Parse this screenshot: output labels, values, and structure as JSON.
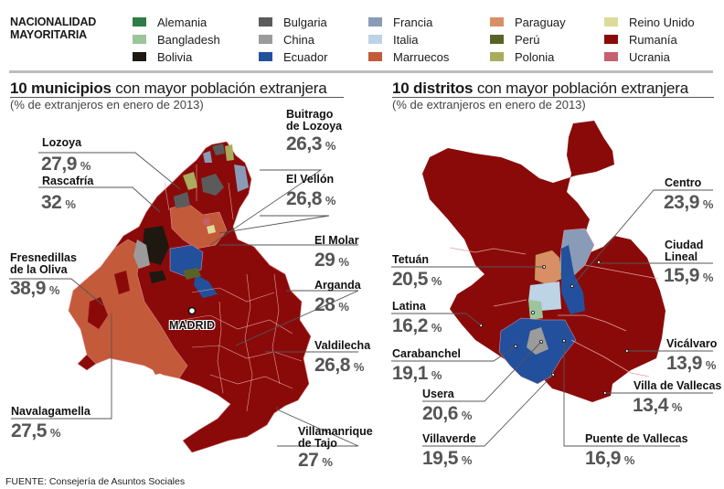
{
  "legend": {
    "title_line1": "NACIONALIDAD",
    "title_line2": "MAYORITARIA",
    "items": [
      {
        "label": "Alemania",
        "color": "#2e7d46"
      },
      {
        "label": "Bangladesh",
        "color": "#9dc49a"
      },
      {
        "label": "Bolivia",
        "color": "#1f1810"
      },
      {
        "label": "Bulgaria",
        "color": "#5b5b5b"
      },
      {
        "label": "China",
        "color": "#9b9b9b"
      },
      {
        "label": "Ecuador",
        "color": "#23509c"
      },
      {
        "label": "Francia",
        "color": "#8a9bb8"
      },
      {
        "label": "Italia",
        "color": "#bcd4e6"
      },
      {
        "label": "Marruecos",
        "color": "#c35a3a"
      },
      {
        "label": "Paraguay",
        "color": "#d98f65"
      },
      {
        "label": "Perú",
        "color": "#5a6326"
      },
      {
        "label": "Polonia",
        "color": "#a9ac5c"
      },
      {
        "label": "Reino Unido",
        "color": "#dbdc9a"
      },
      {
        "label": "Rumanía",
        "color": "#8a0a0a"
      },
      {
        "label": "Ucrania",
        "color": "#c6606e"
      }
    ]
  },
  "municipios": {
    "title_bold": "10 municipios",
    "title_rest": " con mayor población extranjera",
    "subtitle": "(% de extranjeros en enero de 2013)",
    "capital_label": "MADRID",
    "items": [
      {
        "name": "Lozoya",
        "value": "27,9",
        "unit": "%"
      },
      {
        "name": "Rascafría",
        "value": "32",
        "unit": "%"
      },
      {
        "name": "Buitrago",
        "name2": "de Lozoya",
        "value": "26,3",
        "unit": "%"
      },
      {
        "name": "El Vellón",
        "value": "26,8",
        "unit": "%"
      },
      {
        "name": "El Molar",
        "value": "29",
        "unit": "%"
      },
      {
        "name": "Fresnedillas",
        "name2": "de la Oliva",
        "value": "38,9",
        "unit": "%"
      },
      {
        "name": "Arganda",
        "value": "28",
        "unit": "%"
      },
      {
        "name": "Valdilecha",
        "value": "26,8",
        "unit": "%"
      },
      {
        "name": "Navalagamella",
        "value": "27,5",
        "unit": "%"
      },
      {
        "name": "Villamanrique",
        "name2": "de Tajo",
        "value": "27",
        "unit": "%"
      }
    ]
  },
  "distritos": {
    "title_bold": "10 distritos",
    "title_rest": " con mayor población extranjera",
    "subtitle": "(% de extranjeros en enero de 2013)",
    "items": [
      {
        "name": "Centro",
        "value": "23,9",
        "unit": "%"
      },
      {
        "name": "Tetuán",
        "value": "20,5",
        "unit": "%"
      },
      {
        "name": "Ciudad",
        "name2": "Lineal",
        "value": "15,9",
        "unit": "%"
      },
      {
        "name": "Latina",
        "value": "16,2",
        "unit": "%"
      },
      {
        "name": "Carabanchel",
        "value": "19,1",
        "unit": "%"
      },
      {
        "name": "Vicálvaro",
        "value": "13,9",
        "unit": "%"
      },
      {
        "name": "Villa de Vallecas",
        "value": "13,4",
        "unit": "%"
      },
      {
        "name": "Usera",
        "value": "20,6",
        "unit": "%"
      },
      {
        "name": "Villaverde",
        "value": "19,5",
        "unit": "%"
      },
      {
        "name": "Puente de Vallecas",
        "value": "16,9",
        "unit": "%"
      }
    ]
  },
  "source": "FUENTE: Consejería de Asuntos Sociales"
}
